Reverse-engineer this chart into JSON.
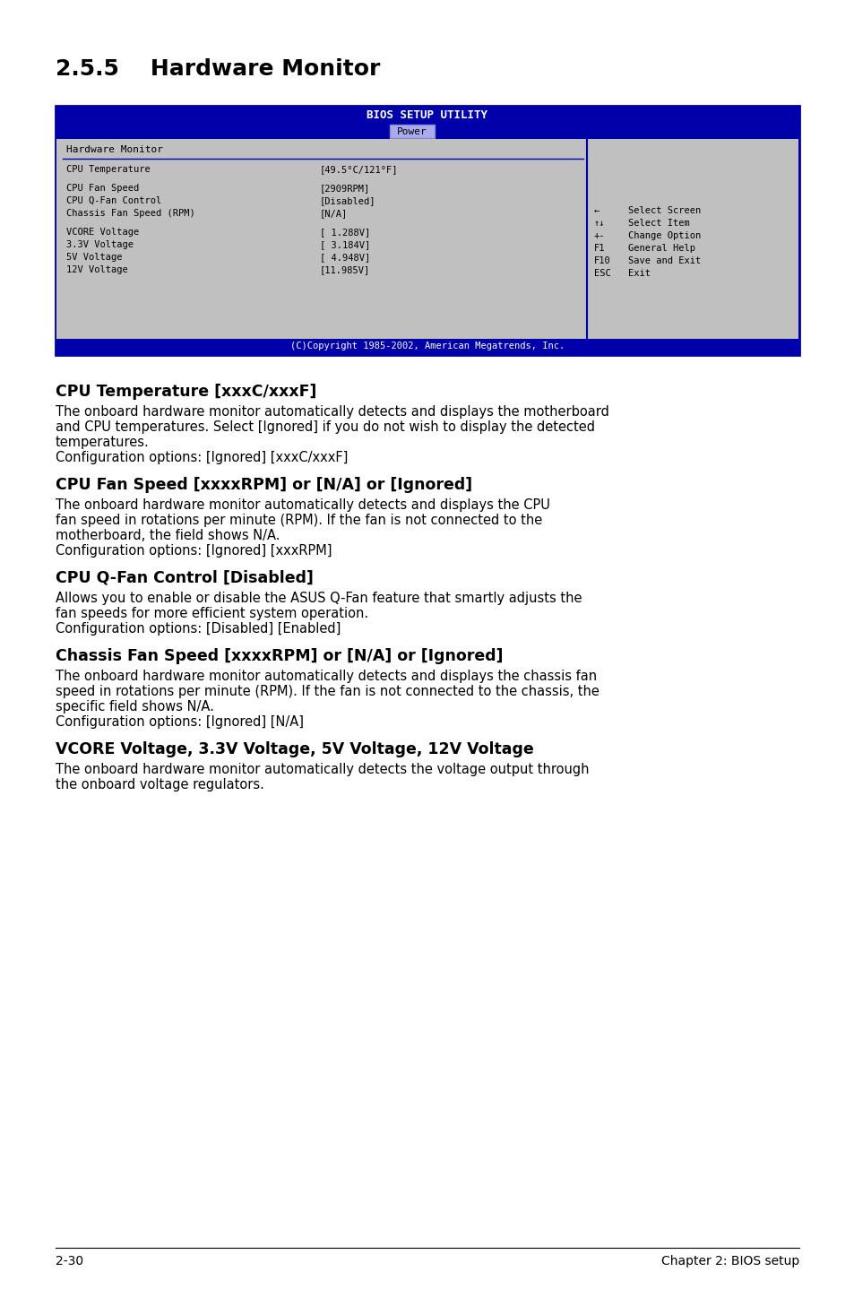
{
  "page_title": "2.5.5    Hardware Monitor",
  "bios_title": "BIOS SETUP UTILITY",
  "bios_tab": "Power",
  "bios_section": "Hardware Monitor",
  "bios_rows": [
    [
      "CPU Temperature",
      "[49.5°C/121°F]"
    ],
    [
      "",
      ""
    ],
    [
      "CPU Fan Speed",
      "[2909RPM]"
    ],
    [
      "CPU Q-Fan Control",
      "[Disabled]"
    ],
    [
      "Chassis Fan Speed (RPM)",
      "[N/A]"
    ],
    [
      "",
      ""
    ],
    [
      "VCORE Voltage",
      "[ 1.288V]"
    ],
    [
      "3.3V Voltage",
      "[ 3.184V]"
    ],
    [
      "5V Voltage",
      "[ 4.948V]"
    ],
    [
      "12V Voltage",
      "[11.985V]"
    ]
  ],
  "bios_help": [
    [
      "←",
      "Select Screen"
    ],
    [
      "↑↓",
      "Select Item"
    ],
    [
      "+-",
      "Change Option"
    ],
    [
      "F1",
      "General Help"
    ],
    [
      "F10",
      "Save and Exit"
    ],
    [
      "ESC",
      "Exit"
    ]
  ],
  "bios_copyright": "(C)Copyright 1985-2002, American Megatrends, Inc.",
  "sections": [
    {
      "heading": "CPU Temperature [xxxC/xxxF]",
      "body": "The onboard hardware monitor automatically detects and displays the motherboard\nand CPU temperatures. Select [Ignored] if you do not wish to display the detected\ntemperatures.\nConfiguration options: [Ignored] [xxxC/xxxF]"
    },
    {
      "heading": "CPU Fan Speed [xxxxRPM] or [N/A] or [Ignored]",
      "body": "The onboard hardware monitor automatically detects and displays the CPU\nfan speed in rotations per minute (RPM). If the fan is not connected to the\nmotherboard, the field shows N/A.\nConfiguration options: [Ignored] [xxxRPM]"
    },
    {
      "heading": "CPU Q-Fan Control [Disabled]",
      "body": "Allows you to enable or disable the ASUS Q-Fan feature that smartly adjusts the\nfan speeds for more efficient system operation.\nConfiguration options: [Disabled] [Enabled]"
    },
    {
      "heading": "Chassis Fan Speed [xxxxRPM] or [N/A] or [Ignored]",
      "body": "The onboard hardware monitor automatically detects and displays the chassis fan\nspeed in rotations per minute (RPM). If the fan is not connected to the chassis, the\nspecific field shows N/A.\nConfiguration options: [Ignored] [N/A]"
    },
    {
      "heading": "VCORE Voltage, 3.3V Voltage, 5V Voltage, 12V Voltage",
      "body": "The onboard hardware monitor automatically detects the voltage output through\nthe onboard voltage regulators."
    }
  ],
  "footer_left": "2-30",
  "footer_right": "Chapter 2: BIOS setup",
  "bg_color": "#ffffff",
  "bios_bg_dark": "#0000aa",
  "bios_bg_light": "#aaaaaa",
  "bios_text_dark": "#ffffff",
  "bios_text_black": "#000000",
  "bios_border": "#0000aa",
  "bios_content_bg": "#c0c0c0"
}
